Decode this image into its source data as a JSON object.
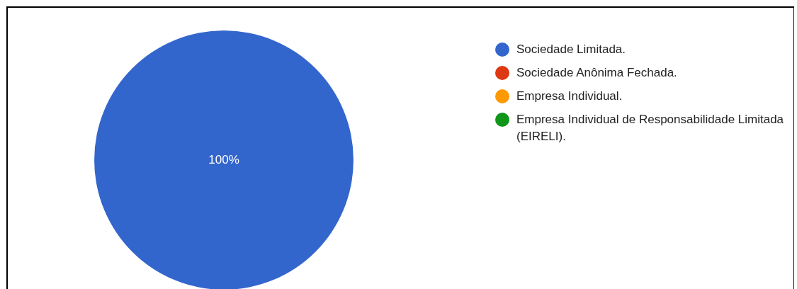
{
  "chart_data": {
    "type": "pie",
    "categories": [
      "Sociedade Limitada.",
      "Sociedade Anônima Fechada.",
      "Empresa Individual.",
      "Empresa Individual de Responsabilidade Limitada (EIRELI)."
    ],
    "values": [
      100,
      0,
      0,
      0
    ],
    "colors": [
      "#3366cc",
      "#dc3912",
      "#ff9900",
      "#109618"
    ],
    "value_labels": [
      "100%",
      null,
      null,
      null
    ],
    "legend": "right"
  }
}
